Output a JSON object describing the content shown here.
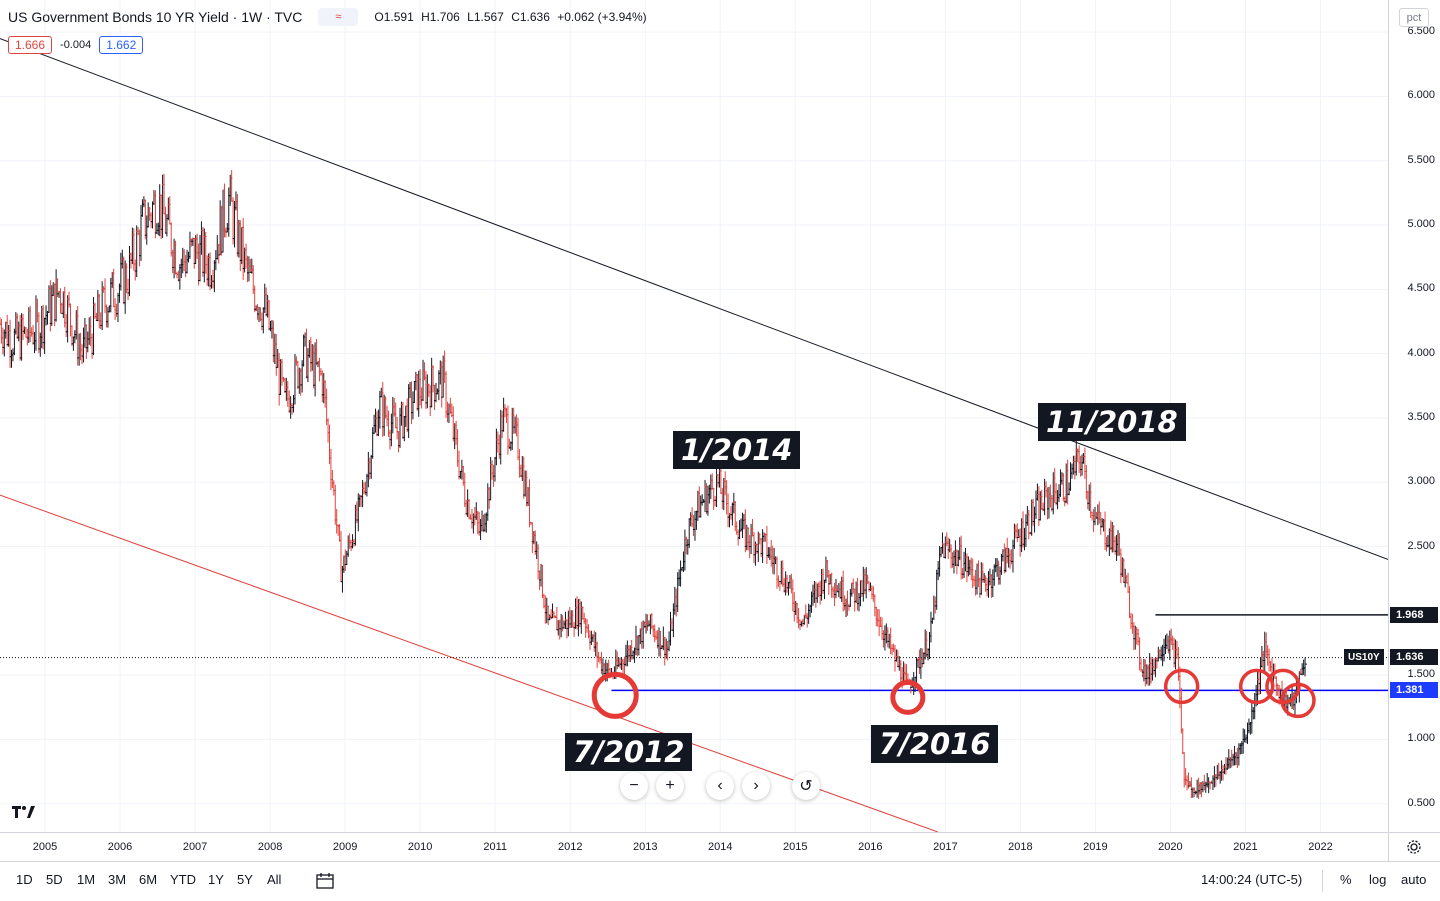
{
  "header": {
    "title": "US Government Bonds 10 YR Yield · 1W · TVC",
    "mode_icon": "≈",
    "ohlc": {
      "open": "O1.591",
      "high": "H1.706",
      "low": "L1.567",
      "close": "C1.636",
      "change": "+0.062 (+3.94%)"
    },
    "sell_price": "1.666",
    "spread": "-0.004",
    "buy_price": "1.662"
  },
  "price_scale": {
    "unit": "pct",
    "labels": [
      "6.500",
      "6.000",
      "5.500",
      "5.000",
      "4.500",
      "4.000",
      "3.500",
      "3.000",
      "2.500",
      "1.500",
      "1.000",
      "0.500"
    ]
  },
  "price_tags": {
    "level_high": "1.968",
    "symbol": "US10Y",
    "last": "1.636",
    "level_support": "1.381"
  },
  "time_scale": [
    "2005",
    "2006",
    "2007",
    "2008",
    "2009",
    "2010",
    "2011",
    "2012",
    "2013",
    "2014",
    "2015",
    "2016",
    "2017",
    "2018",
    "2019",
    "2020",
    "2021",
    "2022"
  ],
  "annotations": {
    "a_2012": "7/2012",
    "a_2014": "1/2014",
    "a_2016": "7/2016",
    "a_2018": "11/2018"
  },
  "toolbar": {
    "ranges": [
      "1D",
      "5D",
      "1M",
      "3M",
      "6M",
      "YTD",
      "1Y",
      "5Y",
      "All"
    ],
    "clock": "14:00:24 (UTC-5)",
    "pct": "%",
    "log": "log",
    "auto": "auto"
  },
  "chart_data": {
    "type": "line",
    "title": "US Government Bonds 10 YR Yield · 1W · TVC",
    "x": [
      2004.1,
      2004.3,
      2004.6,
      2004.9,
      2005.2,
      2005.5,
      2005.8,
      2006.1,
      2006.3,
      2006.5,
      2006.8,
      2007.0,
      2007.2,
      2007.45,
      2007.7,
      2007.95,
      2008.2,
      2008.45,
      2008.7,
      2008.95,
      2009.2,
      2009.45,
      2009.7,
      2009.95,
      2010.3,
      2010.6,
      2010.8,
      2011.1,
      2011.3,
      2011.6,
      2011.7,
      2011.95,
      2012.15,
      2012.4,
      2012.55,
      2012.8,
      2013.05,
      2013.3,
      2013.55,
      2013.7,
      2013.95,
      2014.3,
      2014.6,
      2014.9,
      2015.1,
      2015.4,
      2015.7,
      2015.95,
      2016.2,
      2016.5,
      2016.8,
      2016.95,
      2017.2,
      2017.5,
      2017.8,
      2018.1,
      2018.4,
      2018.65,
      2018.8,
      2019.0,
      2019.3,
      2019.6,
      2019.7,
      2019.95,
      2020.1,
      2020.18,
      2020.3,
      2020.6,
      2020.9,
      2021.05,
      2021.25,
      2021.5,
      2021.65,
      2021.8
    ],
    "values": [
      4.6,
      4.3,
      4.1,
      4.2,
      4.5,
      4.0,
      4.4,
      4.6,
      5.0,
      5.2,
      4.7,
      4.8,
      4.7,
      5.2,
      4.6,
      4.3,
      3.6,
      4.0,
      3.8,
      2.3,
      2.8,
      3.6,
      3.4,
      3.7,
      3.8,
      2.9,
      2.6,
      3.5,
      3.3,
      2.3,
      1.9,
      1.9,
      2.0,
      1.6,
      1.5,
      1.7,
      1.9,
      1.7,
      2.6,
      2.8,
      3.0,
      2.6,
      2.5,
      2.2,
      1.9,
      2.3,
      2.1,
      2.2,
      1.8,
      1.4,
      1.8,
      2.5,
      2.4,
      2.2,
      2.4,
      2.7,
      2.9,
      3.0,
      3.2,
      2.7,
      2.5,
      1.6,
      1.5,
      1.8,
      1.6,
      0.7,
      0.6,
      0.7,
      0.9,
      1.1,
      1.7,
      1.3,
      1.3,
      1.64
    ],
    "ylim": [
      0.28,
      6.75
    ],
    "xlim": [
      2004.4,
      2022.9
    ],
    "x_ticks": [
      2005,
      2006,
      2007,
      2008,
      2009,
      2010,
      2011,
      2012,
      2013,
      2014,
      2015,
      2016,
      2017,
      2018,
      2019,
      2020,
      2021,
      2022
    ],
    "y_ticks": [
      0.5,
      1.0,
      1.5,
      2.5,
      3.0,
      3.5,
      4.0,
      4.5,
      5.0,
      5.5,
      6.0,
      6.5
    ],
    "support_level": 1.381,
    "resistance_level": 1.968,
    "last_value": 1.636,
    "trendline_upper": [
      [
        2004.4,
        6.45
      ],
      [
        2022.9,
        2.4
      ]
    ],
    "trendline_lower": [
      [
        2004.4,
        2.9
      ],
      [
        2016.9,
        0.28
      ]
    ],
    "circled_dates": [
      2012.6,
      2016.5,
      2020.15,
      2021.15,
      2021.5,
      2021.7
    ],
    "grid": true,
    "colors": {
      "up": "#131722",
      "down": "#e0443e",
      "support": "#0000ff",
      "upper_trend": "#131722",
      "lower_trend": "#e0443e",
      "circle": "#e53935"
    }
  }
}
